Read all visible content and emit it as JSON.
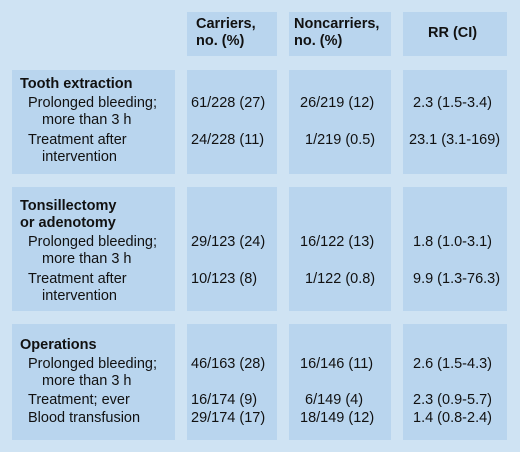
{
  "headers": {
    "carriers": [
      "Carriers,",
      "no. (%)"
    ],
    "noncarriers": [
      "Noncarriers,",
      "no. (%)"
    ],
    "rr": "RR (CI)"
  },
  "sections": [
    {
      "title": [
        "Tooth extraction"
      ],
      "rows": [
        {
          "label": [
            "Prolonged bleeding;",
            "more than 3 h"
          ],
          "carriers": "61/228 (27)",
          "noncarriers": "26/219 (12)",
          "rr": "2.3 (1.5-3.4)"
        },
        {
          "label": [
            "Treatment after",
            "intervention"
          ],
          "carriers": "24/228 (11)",
          "noncarriers": "1/219 (0.5)",
          "rr": "23.1 (3.1-169)"
        }
      ]
    },
    {
      "title": [
        "Tonsillectomy",
        "or adenotomy"
      ],
      "rows": [
        {
          "label": [
            "Prolonged bleeding;",
            "more than 3 h"
          ],
          "carriers": "29/123 (24)",
          "noncarriers": "16/122 (13)",
          "rr": "1.8 (1.0-3.1)"
        },
        {
          "label": [
            "Treatment after",
            "intervention"
          ],
          "carriers": "10/123 (8)",
          "noncarriers": "1/122 (0.8)",
          "rr": "9.9 (1.3-76.3)"
        }
      ]
    },
    {
      "title": [
        "Operations"
      ],
      "rows": [
        {
          "label": [
            "Prolonged bleeding;",
            "more than 3 h"
          ],
          "carriers": "46/163 (28)",
          "noncarriers": "16/146 (11)",
          "rr": "2.6 (1.5-4.3)"
        },
        {
          "label": [
            "Treatment; ever"
          ],
          "carriers": "16/174 (9)",
          "noncarriers": "6/149 (4)",
          "rr": "2.3 (0.9-5.7)"
        },
        {
          "label": [
            "Blood transfusion"
          ],
          "carriers": "29/174 (17)",
          "noncarriers": "18/149 (12)",
          "rr": "1.4 (0.8-2.4)"
        }
      ]
    }
  ]
}
